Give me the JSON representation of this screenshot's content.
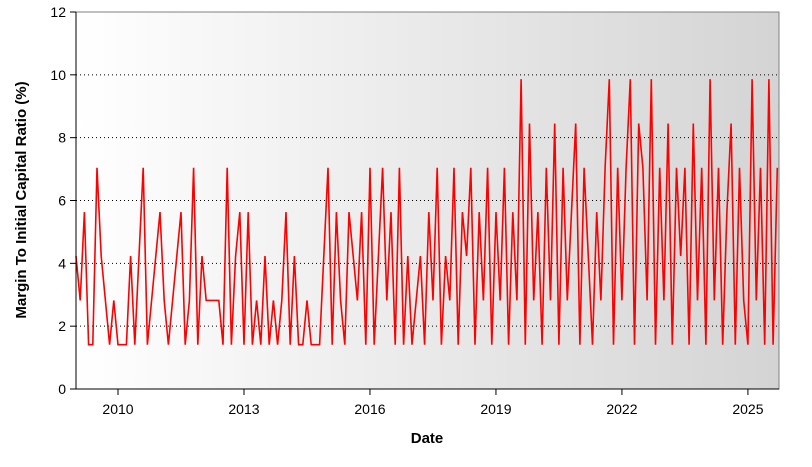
{
  "chart_data": {
    "type": "line",
    "x_label": "Date",
    "y_label": "Margin To Initial Capital Ratio (%)",
    "color": "#ff0000",
    "grid": true,
    "xlim": [
      2009,
      2025.74
    ],
    "xticks": [
      2010,
      2013,
      2016,
      2019,
      2022,
      2025
    ],
    "ylim": [
      0,
      12
    ],
    "yticks": [
      0,
      2,
      4,
      6,
      8,
      10,
      12
    ],
    "x": [
      2009.0,
      2009.1,
      2009.2,
      2009.3,
      2009.4,
      2009.5,
      2009.6,
      2009.7,
      2009.8,
      2009.9,
      2010.0,
      2010.1,
      2010.2,
      2010.3,
      2010.4,
      2010.5,
      2010.6,
      2010.7,
      2010.8,
      2010.9,
      2011.0,
      2011.1,
      2011.2,
      2011.3,
      2011.4,
      2011.5,
      2011.6,
      2011.7,
      2011.8,
      2011.9,
      2012.0,
      2012.1,
      2012.2,
      2012.3,
      2012.4,
      2012.5,
      2012.6,
      2012.7,
      2012.8,
      2012.9,
      2013.0,
      2013.1,
      2013.2,
      2013.3,
      2013.4,
      2013.5,
      2013.6,
      2013.7,
      2013.8,
      2013.9,
      2014.0,
      2014.1,
      2014.2,
      2014.3,
      2014.4,
      2014.5,
      2014.6,
      2014.7,
      2014.8,
      2014.9,
      2015.0,
      2015.1,
      2015.2,
      2015.3,
      2015.4,
      2015.5,
      2015.6,
      2015.7,
      2015.8,
      2015.9,
      2016.0,
      2016.1,
      2016.2,
      2016.3,
      2016.4,
      2016.5,
      2016.6,
      2016.7,
      2016.8,
      2016.9,
      2017.0,
      2017.1,
      2017.2,
      2017.3,
      2017.4,
      2017.5,
      2017.6,
      2017.7,
      2017.8,
      2017.9,
      2018.0,
      2018.1,
      2018.2,
      2018.3,
      2018.4,
      2018.5,
      2018.6,
      2018.7,
      2018.8,
      2018.9,
      2019.0,
      2019.1,
      2019.2,
      2019.3,
      2019.4,
      2019.5,
      2019.6,
      2019.7,
      2019.8,
      2019.9,
      2020.0,
      2020.1,
      2020.2,
      2020.3,
      2020.4,
      2020.5,
      2020.6,
      2020.7,
      2020.8,
      2020.9,
      2021.0,
      2021.1,
      2021.2,
      2021.3,
      2021.4,
      2021.5,
      2021.6,
      2021.7,
      2021.8,
      2021.9,
      2022.0,
      2022.1,
      2022.2,
      2022.3,
      2022.4,
      2022.5,
      2022.6,
      2022.7,
      2022.8,
      2022.9,
      2023.0,
      2023.1,
      2023.2,
      2023.3,
      2023.4,
      2023.5,
      2023.6,
      2023.7,
      2023.8,
      2023.9,
      2024.0,
      2024.1,
      2024.2,
      2024.3,
      2024.4,
      2024.5,
      2024.6,
      2024.7,
      2024.8,
      2024.9,
      2025.0,
      2025.1,
      2025.2,
      2025.3,
      2025.4,
      2025.5,
      2025.6,
      2025.7
    ],
    "values": [
      4.23,
      2.82,
      5.63,
      1.41,
      1.41,
      7.04,
      4.23,
      2.82,
      1.41,
      2.82,
      1.41,
      1.41,
      1.41,
      4.23,
      1.41,
      4.23,
      7.04,
      1.41,
      2.82,
      4.23,
      5.63,
      2.82,
      1.41,
      2.82,
      4.23,
      5.63,
      1.41,
      2.82,
      7.04,
      1.41,
      4.23,
      2.82,
      2.82,
      2.82,
      2.82,
      1.41,
      7.04,
      1.41,
      4.23,
      5.63,
      1.41,
      5.63,
      1.41,
      2.82,
      1.41,
      4.23,
      1.41,
      2.82,
      1.41,
      2.82,
      5.63,
      1.41,
      4.23,
      1.41,
      1.41,
      2.82,
      1.41,
      1.41,
      1.41,
      4.23,
      7.04,
      1.41,
      5.63,
      2.82,
      1.41,
      5.63,
      4.23,
      2.82,
      5.63,
      1.41,
      7.04,
      1.41,
      4.23,
      7.04,
      2.82,
      5.63,
      1.41,
      7.04,
      1.41,
      4.23,
      1.41,
      2.82,
      4.23,
      1.41,
      5.63,
      2.82,
      7.04,
      1.41,
      4.23,
      2.82,
      7.04,
      1.41,
      5.63,
      4.23,
      7.04,
      1.41,
      5.63,
      2.82,
      7.04,
      1.41,
      5.63,
      2.82,
      7.04,
      1.41,
      5.63,
      2.82,
      9.86,
      1.41,
      8.45,
      2.82,
      5.63,
      1.41,
      7.04,
      2.82,
      8.45,
      1.41,
      7.04,
      2.82,
      5.63,
      8.45,
      1.41,
      7.04,
      4.23,
      1.41,
      5.63,
      2.82,
      7.04,
      9.86,
      1.41,
      7.04,
      2.82,
      7.04,
      9.86,
      1.41,
      8.45,
      7.04,
      2.82,
      9.86,
      1.41,
      7.04,
      2.82,
      8.45,
      1.41,
      7.04,
      4.23,
      7.04,
      1.41,
      8.45,
      2.82,
      7.04,
      1.41,
      9.86,
      2.82,
      7.04,
      1.41,
      5.63,
      8.45,
      1.41,
      7.04,
      2.82,
      1.41,
      9.86,
      2.82,
      7.04,
      1.41,
      9.86,
      1.41,
      7.04
    ]
  }
}
